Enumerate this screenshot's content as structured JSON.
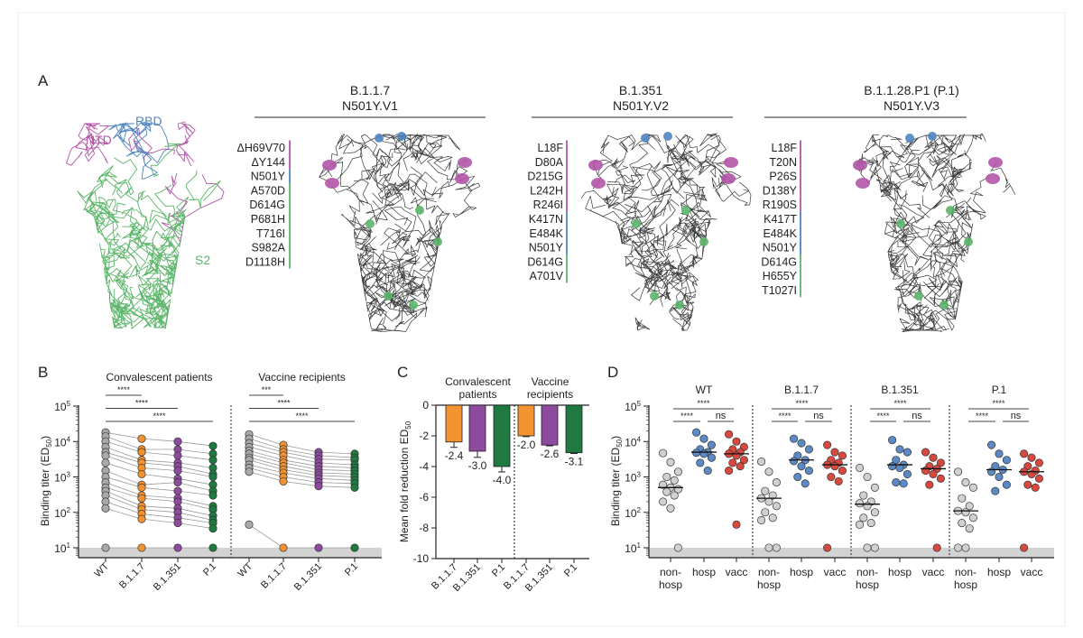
{
  "panel_labels": {
    "a": "A",
    "b": "B",
    "c": "C",
    "d": "D"
  },
  "panel_a": {
    "domain_labels": {
      "ntd": "NTD",
      "rbd": "RBD",
      "s2": "S2"
    },
    "colors": {
      "ntd": "#b455a8",
      "rbd": "#4f86c0",
      "s2": "#5cb56a",
      "backbone": "#3a3a3a"
    },
    "variants": [
      {
        "name": "B.1.1.7",
        "alias": "N501Y.V1",
        "mutations": [
          {
            "m": "ΔH69V70",
            "d": "ntd"
          },
          {
            "m": "ΔY144",
            "d": "ntd"
          },
          {
            "m": "N501Y",
            "d": "rbd"
          },
          {
            "m": "A570D",
            "d": "s2"
          },
          {
            "m": "D614G",
            "d": "s2"
          },
          {
            "m": "P681H",
            "d": "s2"
          },
          {
            "m": "T716I",
            "d": "s2"
          },
          {
            "m": "S982A",
            "d": "s2"
          },
          {
            "m": "D1118H",
            "d": "s2"
          }
        ]
      },
      {
        "name": "B.1.351",
        "alias": "N501Y.V2",
        "mutations": [
          {
            "m": "L18F",
            "d": "ntd"
          },
          {
            "m": "D80A",
            "d": "ntd"
          },
          {
            "m": "D215G",
            "d": "ntd"
          },
          {
            "m": "L242H",
            "d": "ntd"
          },
          {
            "m": "R246I",
            "d": "ntd"
          },
          {
            "m": "K417N",
            "d": "rbd"
          },
          {
            "m": "E484K",
            "d": "rbd"
          },
          {
            "m": "N501Y",
            "d": "rbd"
          },
          {
            "m": "D614G",
            "d": "s2"
          },
          {
            "m": "A701V",
            "d": "s2"
          }
        ]
      },
      {
        "name": "B.1.1.28.P1 (P.1)",
        "alias": "N501Y.V3",
        "mutations": [
          {
            "m": "L18F",
            "d": "ntd"
          },
          {
            "m": "T20N",
            "d": "ntd"
          },
          {
            "m": "P26S",
            "d": "ntd"
          },
          {
            "m": "D138Y",
            "d": "ntd"
          },
          {
            "m": "R190S",
            "d": "ntd"
          },
          {
            "m": "K417T",
            "d": "rbd"
          },
          {
            "m": "E484K",
            "d": "rbd"
          },
          {
            "m": "N501Y",
            "d": "rbd"
          },
          {
            "m": "D614G",
            "d": "s2"
          },
          {
            "m": "H655Y",
            "d": "s2"
          },
          {
            "m": "T1027I",
            "d": "s2"
          }
        ]
      }
    ]
  },
  "chart_data": [
    {
      "panel": "B",
      "type": "scatter",
      "ylabel": "Binding titer (ED50)",
      "yscale": "log",
      "ylim": [
        5,
        100000
      ],
      "yticks": [
        "10^1",
        "10^2",
        "10^3",
        "10^4",
        "10^5"
      ],
      "limit_of_detection_band": true,
      "categories": [
        "WT",
        "B.1.1.7",
        "B.1.351",
        "P.1"
      ],
      "colors": {
        "WT": "#a9a9ab",
        "B.1.1.7": "#f39231",
        "B.1.351": "#8e4a9e",
        "P.1": "#1e7a3f"
      },
      "groups": [
        {
          "title": "Convalescent patients",
          "significance": [
            "****",
            "****",
            "****"
          ],
          "subjects": [
            [
              18000,
              12000,
              10000,
              7500
            ],
            [
              14000,
              6000,
              6000,
              4500
            ],
            [
              10000,
              5000,
              4000,
              3000
            ],
            [
              7000,
              3000,
              2500,
              1800
            ],
            [
              5000,
              2500,
              2000,
              1200
            ],
            [
              4000,
              1800,
              1500,
              1000
            ],
            [
              2500,
              1200,
              900,
              600
            ],
            [
              1500,
              600,
              700,
              400
            ],
            [
              1000,
              500,
              400,
              300
            ],
            [
              700,
              300,
              250,
              150
            ],
            [
              500,
              250,
              200,
              120
            ],
            [
              400,
              150,
              130,
              80
            ],
            [
              300,
              120,
              100,
              60
            ],
            [
              200,
              90,
              70,
              50
            ],
            [
              130,
              65,
              50,
              35
            ],
            [
              10,
              10,
              10,
              10
            ]
          ]
        },
        {
          "title": "Vaccine recipients",
          "significance": [
            "***",
            "****",
            "****"
          ],
          "subjects": [
            [
              16000,
              8000,
              5000,
              4500
            ],
            [
              12000,
              6000,
              4000,
              3500
            ],
            [
              9000,
              5000,
              3200,
              3000
            ],
            [
              7000,
              4000,
              2500,
              2200
            ],
            [
              5500,
              3000,
              2000,
              1800
            ],
            [
              4500,
              2500,
              1600,
              1500
            ],
            [
              3500,
              2000,
              1300,
              1200
            ],
            [
              3000,
              1600,
              1100,
              1000
            ],
            [
              2200,
              1300,
              900,
              800
            ],
            [
              1800,
              1000,
              700,
              650
            ],
            [
              1400,
              750,
              550,
              500
            ],
            [
              45,
              10,
              10,
              10
            ]
          ]
        }
      ]
    },
    {
      "panel": "C",
      "type": "bar",
      "ylabel": "Mean fold reduction ED50",
      "ylim": [
        -10,
        0
      ],
      "yticks": [
        0,
        -2,
        -4,
        -6,
        -8,
        -10
      ],
      "groups": [
        {
          "title": "Convalescent patients",
          "bars": [
            {
              "category": "B.1.1.7",
              "value": -2.4,
              "error": 0.35,
              "label": "-2.4"
            },
            {
              "category": "B.1.351",
              "value": -3.0,
              "error": 0.4,
              "label": "-3.0"
            },
            {
              "category": "P.1",
              "value": -4.0,
              "error": 0.35,
              "label": "-4.0"
            }
          ]
        },
        {
          "title": "Vaccine recipients",
          "bars": [
            {
              "category": "B.1.1.7",
              "value": -2.0,
              "error": 0.05,
              "label": "-2.0"
            },
            {
              "category": "B.1.351",
              "value": -2.6,
              "error": 0.05,
              "label": "-2.6"
            },
            {
              "category": "P.1",
              "value": -3.1,
              "error": 0.05,
              "label": "-3.1"
            }
          ]
        }
      ],
      "colors": {
        "B.1.1.7": "#f39231",
        "B.1.351": "#8e4a9e",
        "P.1": "#1e7a3f"
      }
    },
    {
      "panel": "D",
      "type": "scatter",
      "ylabel": "Binding titer (ED50)",
      "yscale": "log",
      "ylim": [
        5,
        100000
      ],
      "yticks": [
        "10^1",
        "10^2",
        "10^3",
        "10^4",
        "10^5"
      ],
      "limit_of_detection_band": true,
      "categories": [
        "non-\nhosp",
        "hosp",
        "vacc"
      ],
      "colors": {
        "non-hosp": "#d0d0d0",
        "hosp": "#5b8ac4",
        "vacc": "#d9483f"
      },
      "significance": {
        "nonhosp_vs_vacc": "****",
        "nonhosp_vs_hosp": "****",
        "hosp_vs_vacc": "ns"
      },
      "groups": [
        {
          "title": "WT",
          "medians": [
            500,
            5000,
            4500
          ],
          "points": [
            [
              4700,
              2600,
              1400,
              1000,
              800,
              600,
              500,
              450,
              380,
              300,
              200,
              130,
              10
            ],
            [
              18000,
              12000,
              8000,
              6000,
              5000,
              4800,
              4500,
              3500,
              2500,
              1500
            ],
            [
              16000,
              10000,
              7000,
              6000,
              5000,
              4500,
              4000,
              3000,
              2500,
              2000,
              1500,
              45
            ]
          ]
        },
        {
          "title": "B.1.1.7",
          "medians": [
            250,
            3000,
            2200
          ],
          "points": [
            [
              2700,
              1400,
              700,
              400,
              300,
              250,
              200,
              150,
              100,
              70,
              60,
              10,
              10
            ],
            [
              12000,
              9000,
              6000,
              4000,
              3000,
              2800,
              2000,
              1500,
              1000,
              650
            ],
            [
              8000,
              5000,
              4000,
              3000,
              2500,
              2200,
              2000,
              1500,
              1000,
              750,
              10
            ]
          ]
        },
        {
          "title": "B.1.351",
          "medians": [
            170,
            2200,
            1700
          ],
          "points": [
            [
              1800,
              1000,
              500,
              300,
              200,
              180,
              150,
              100,
              70,
              50,
              45,
              10,
              10
            ],
            [
              11000,
              6000,
              5000,
              3000,
              2200,
              2000,
              1800,
              1200,
              700,
              650
            ],
            [
              5000,
              3500,
              2500,
              2000,
              1700,
              1500,
              1200,
              900,
              600,
              10
            ]
          ]
        },
        {
          "title": "P.1",
          "medians": [
            110,
            1600,
            1400
          ],
          "points": [
            [
              1400,
              700,
              500,
              250,
              150,
              110,
              100,
              70,
              50,
              35,
              10,
              10
            ],
            [
              8000,
              4500,
              3000,
              2000,
              1600,
              1400,
              1000,
              600,
              400
            ],
            [
              4500,
              3500,
              2500,
              2000,
              1500,
              1400,
              1200,
              900,
              600,
              500,
              10
            ]
          ]
        }
      ]
    }
  ]
}
